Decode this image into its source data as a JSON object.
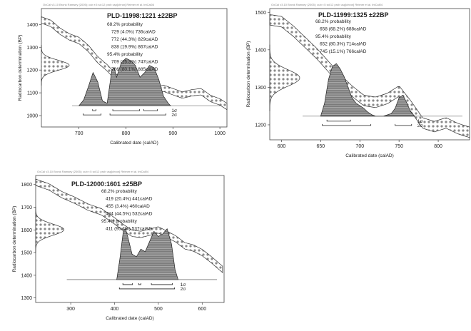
{
  "chart_data": [
    {
      "type": "line",
      "header": "OxCal v3.10 Bronk Ramsey (2005); cub r:5 sd:12 prob usp[chron] Reimer et al. IntCal04",
      "title": "PLD-11998:1221 ±22BP",
      "xlabel": "Calibrated date (calAD)",
      "ylabel": "Radiocarbon determination (BP)",
      "xlim": [
        620,
        1015
      ],
      "ylim": [
        950,
        1470
      ],
      "xticks": [
        700,
        800,
        900,
        1000
      ],
      "yticks": [
        1000,
        1100,
        1200,
        1300,
        1400
      ],
      "radiocarbon_mean": 1221,
      "radiocarbon_sd": 22,
      "probability_text": [
        "68.2% probability",
        "729 (4.0%) 736calAD",
        "772 (44.3%) 829calAD",
        "838 (19.9%) 867calAD",
        "95.4% probability",
        "709 (15.3%) 747calAD",
        "766 (80.1%) 885calAD"
      ],
      "calibration_curve": {
        "x": [
          620,
          640,
          660,
          680,
          700,
          720,
          740,
          760,
          780,
          800,
          820,
          840,
          860,
          880,
          900,
          920,
          940,
          960,
          980,
          1000,
          1015
        ],
        "y": [
          1420,
          1405,
          1370,
          1345,
          1330,
          1295,
          1245,
          1210,
          1165,
          1170,
          1150,
          1155,
          1110,
          1120,
          1105,
          1090,
          1100,
          1105,
          1075,
          1060,
          1040
        ]
      },
      "calibrated_distribution": {
        "x": [
          700,
          710,
          720,
          730,
          740,
          750,
          760,
          770,
          775,
          780,
          790,
          800,
          810,
          820,
          830,
          840,
          850,
          860,
          870,
          880,
          890,
          895
        ],
        "y": [
          0,
          0.12,
          0.4,
          0.7,
          0.5,
          0.1,
          0.05,
          0.75,
          0.8,
          0.6,
          0.9,
          1.0,
          0.95,
          0.85,
          0.6,
          0.7,
          0.85,
          0.8,
          0.55,
          0.2,
          0.05,
          0
        ]
      },
      "sigma_labels": [
        "1σ",
        "2σ"
      ],
      "sigma_1": [
        [
          729,
          736
        ],
        [
          772,
          829
        ],
        [
          838,
          867
        ]
      ],
      "sigma_2": [
        [
          709,
          747
        ],
        [
          766,
          885
        ]
      ]
    },
    {
      "type": "line",
      "header": "OxCal v3.10 Bronk Ramsey (2005); cub r:5 sd:12 prob usp[chron] Reimer et al. IntCal04",
      "title": "PLD-11999:1325 ±22BP",
      "xlabel": "Calibrated date (calAD)",
      "ylabel": "Radiocarbon determination (BP)",
      "xlim": [
        585,
        840
      ],
      "ylim": [
        1160,
        1510
      ],
      "xticks": [
        600,
        650,
        700,
        750,
        800
      ],
      "yticks": [
        1200,
        1300,
        1400,
        1500
      ],
      "radiocarbon_mean": 1325,
      "radiocarbon_sd": 22,
      "probability_text": [
        "68.2% probability",
        "658 (68.2%) 688calAD",
        "95.4% probability",
        "652 (80.3%) 714calAD",
        "745 (15.1%) 766calAD"
      ],
      "calibration_curve": {
        "x": [
          585,
          600,
          615,
          630,
          645,
          660,
          675,
          690,
          705,
          720,
          735,
          750,
          765,
          780,
          795,
          810,
          825,
          840
        ],
        "y": [
          1480,
          1475,
          1450,
          1420,
          1390,
          1355,
          1320,
          1290,
          1265,
          1260,
          1270,
          1290,
          1250,
          1205,
          1195,
          1205,
          1190,
          1180
        ]
      },
      "calibrated_distribution": {
        "x": [
          650,
          655,
          660,
          665,
          670,
          675,
          680,
          685,
          690,
          695,
          700,
          705,
          710,
          715,
          720,
          730,
          740,
          745,
          750,
          755,
          760,
          765,
          770
        ],
        "y": [
          0,
          0.25,
          0.7,
          0.95,
          1.0,
          0.9,
          0.75,
          0.55,
          0.35,
          0.25,
          0.2,
          0.15,
          0.08,
          0.03,
          0,
          0,
          0.05,
          0.15,
          0.35,
          0.4,
          0.25,
          0.08,
          0
        ]
      },
      "sigma_labels": [
        "1σ",
        "2σ"
      ],
      "sigma_1": [
        [
          658,
          688
        ]
      ],
      "sigma_2": [
        [
          652,
          714
        ],
        [
          745,
          766
        ]
      ]
    },
    {
      "type": "line",
      "header": "OxCal v3.10 Bronk Ramsey (2005); cub r:5 sd:12 prob usp[chron] Reimer et al. IntCal04",
      "title": "PLD-12000:1601 ±25BP",
      "xlabel": "Calibrated date (calAD)",
      "ylabel": "Radiocarbon determination (BP)",
      "xlim": [
        220,
        650
      ],
      "ylim": [
        1280,
        1840
      ],
      "xticks": [
        300,
        400,
        500,
        600
      ],
      "yticks": [
        1300,
        1400,
        1500,
        1600,
        1700,
        1800
      ],
      "radiocarbon_mean": 1601,
      "radiocarbon_sd": 25,
      "probability_text": [
        "68.2% probability",
        "419 (20.4%) 441calAD",
        "455 (3.4%) 460calAD",
        "484 (44.5%) 532calAD",
        "95.4% probability",
        "411 (95.4%) 537calAD"
      ],
      "calibration_curve": {
        "x": [
          220,
          250,
          280,
          310,
          340,
          370,
          400,
          420,
          440,
          460,
          480,
          500,
          520,
          540,
          560,
          580,
          600,
          620,
          650
        ],
        "y": [
          1810,
          1790,
          1755,
          1730,
          1700,
          1680,
          1640,
          1610,
          1585,
          1580,
          1590,
          1600,
          1580,
          1560,
          1530,
          1520,
          1500,
          1470,
          1420
        ]
      },
      "calibrated_distribution": {
        "x": [
          405,
          412,
          420,
          425,
          430,
          440,
          450,
          460,
          470,
          480,
          490,
          500,
          510,
          520,
          530,
          538,
          545
        ],
        "y": [
          0,
          0.4,
          0.95,
          1.0,
          0.85,
          0.5,
          0.45,
          0.6,
          0.55,
          0.75,
          0.95,
          0.85,
          0.9,
          1.0,
          0.7,
          0.2,
          0
        ]
      },
      "sigma_labels": [
        "1σ",
        "2σ"
      ],
      "sigma_1": [
        [
          419,
          441
        ],
        [
          455,
          460
        ],
        [
          484,
          532
        ]
      ],
      "sigma_2": [
        [
          411,
          537
        ]
      ]
    }
  ]
}
